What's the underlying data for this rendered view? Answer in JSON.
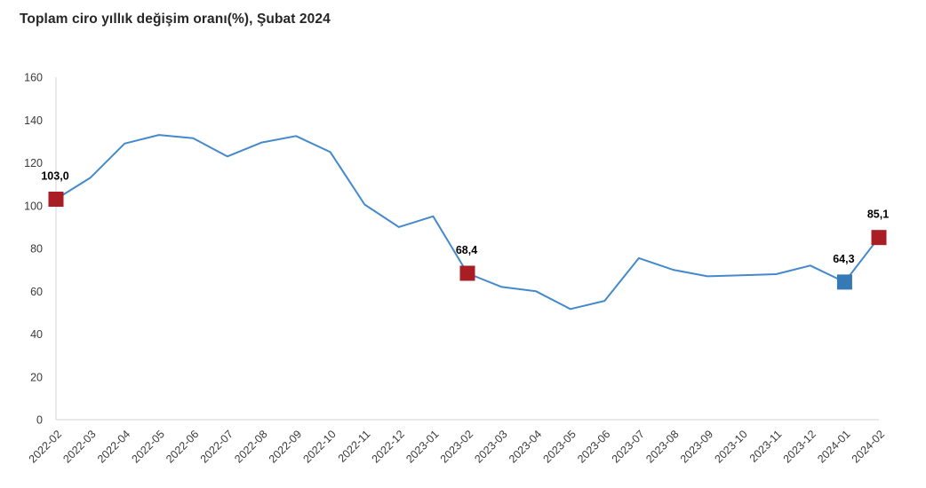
{
  "chart": {
    "title": "Toplam ciro yıllık değişim oranı(%), Şubat 2024"
  },
  "chart_data": {
    "type": "line",
    "title": "Toplam ciro yıllık değişim oranı(%), Şubat 2024",
    "xlabel": "",
    "ylabel": "",
    "categories": [
      "2022-02",
      "2022-03",
      "2022-04",
      "2022-05",
      "2022-06",
      "2022-07",
      "2022-08",
      "2022-09",
      "2022-10",
      "2022-11",
      "2022-12",
      "2023-01",
      "2023-02",
      "2023-03",
      "2023-04",
      "2023-05",
      "2023-06",
      "2023-07",
      "2023-08",
      "2023-09",
      "2023-10",
      "2023-11",
      "2023-12",
      "2024-01",
      "2024-02"
    ],
    "values": [
      103.0,
      113.0,
      129.0,
      133.0,
      131.5,
      123.0,
      129.5,
      132.5,
      125.0,
      100.5,
      90.0,
      95.0,
      68.4,
      62.0,
      60.0,
      51.7,
      55.5,
      75.5,
      70.0,
      67.0,
      67.5,
      68.0,
      72.0,
      64.3,
      85.1
    ],
    "ylim": [
      0,
      160
    ],
    "y_ticks": [
      0,
      20,
      40,
      60,
      80,
      100,
      120,
      140,
      160
    ],
    "grid": false,
    "legend": "none",
    "line_color": "#4489cc",
    "axis_color": "#d3d3d3",
    "tick_label_color": "#3a3a3a",
    "data_label_color": "#000000",
    "annotations": [
      {
        "category": "2022-02",
        "index": 0,
        "label": "103,0",
        "value": 103.0,
        "marker_color": "#a81e24",
        "marker_shape": "square"
      },
      {
        "category": "2023-02",
        "index": 12,
        "label": "68,4",
        "value": 68.4,
        "marker_color": "#a81e24",
        "marker_shape": "square"
      },
      {
        "category": "2024-01",
        "index": 23,
        "label": "64,3",
        "value": 64.3,
        "marker_color": "#3579b5",
        "marker_shape": "square"
      },
      {
        "category": "2024-02",
        "index": 24,
        "label": "85,1",
        "value": 85.1,
        "marker_color": "#a81e24",
        "marker_shape": "square"
      }
    ]
  }
}
